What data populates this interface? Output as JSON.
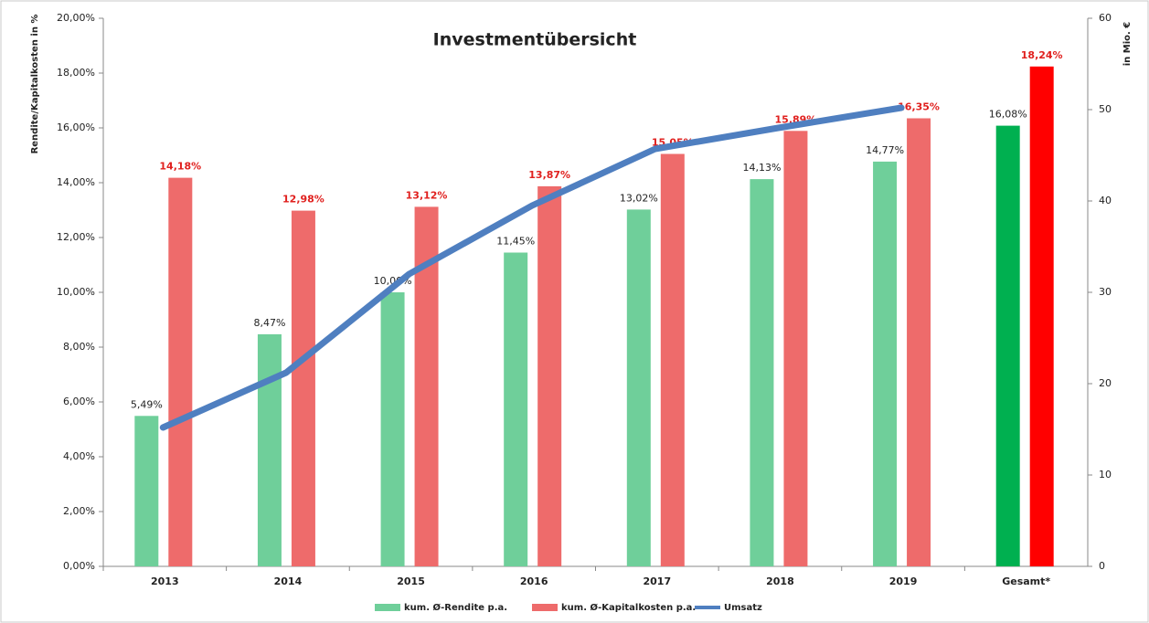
{
  "chart_data": {
    "type": "bar",
    "title": "Investmentübersicht",
    "ylabel": "Rendite/Kapitalkosten in %",
    "y2label": "in Mio. €",
    "categories": [
      "2013",
      "2014",
      "2015",
      "2016",
      "2017",
      "2018",
      "2019",
      "Gesamt*"
    ],
    "series": [
      {
        "name": "kum. Ø-Rendite p.a.",
        "type": "bar",
        "color": "#6fcf9a",
        "colors": [
          "#6fcf9a",
          "#6fcf9a",
          "#6fcf9a",
          "#6fcf9a",
          "#6fcf9a",
          "#6fcf9a",
          "#6fcf9a",
          "#00b050"
        ],
        "label_color": "#222222",
        "values": [
          5.49,
          8.47,
          10.0,
          11.45,
          13.02,
          14.13,
          14.77,
          16.08
        ],
        "value_labels": [
          "5,49%",
          "8,47%",
          "10,00%",
          "11,45%",
          "13,02%",
          "14,13%",
          "14,77%",
          "16,08%"
        ]
      },
      {
        "name": "kum. Ø-Kapitalkosten p.a.",
        "type": "bar",
        "color": "#ee6b6b",
        "colors": [
          "#ee6b6b",
          "#ee6b6b",
          "#ee6b6b",
          "#ee6b6b",
          "#ee6b6b",
          "#ee6b6b",
          "#ee6b6b",
          "#ff0000"
        ],
        "label_color": "#e0201e",
        "values": [
          14.18,
          12.98,
          13.12,
          13.87,
          15.05,
          15.89,
          16.35,
          18.24
        ],
        "value_labels": [
          "14,18%",
          "12,98%",
          "13,12%",
          "13,87%",
          "15,05%",
          "15,89%",
          "16,35%",
          "18,24%"
        ]
      },
      {
        "name": "Umsatz",
        "type": "line",
        "axis": "y2",
        "color": "#4f7fc0",
        "values": [
          15.2,
          21.2,
          32,
          39.5,
          45.7,
          48,
          50.2,
          null
        ]
      }
    ],
    "ylim": [
      0,
      20
    ],
    "yticks": [
      {
        "value": 0,
        "label": "0,00%"
      },
      {
        "value": 2,
        "label": "2,00%"
      },
      {
        "value": 4,
        "label": "4,00%"
      },
      {
        "value": 6,
        "label": "6,00%"
      },
      {
        "value": 8,
        "label": "8,00%"
      },
      {
        "value": 10,
        "label": "10,00%"
      },
      {
        "value": 12,
        "label": "12,00%"
      },
      {
        "value": 14,
        "label": "14,00%"
      },
      {
        "value": 16,
        "label": "16,00%"
      },
      {
        "value": 18,
        "label": "18,00%"
      },
      {
        "value": 20,
        "label": "20,00%"
      }
    ],
    "y2lim": [
      0,
      60
    ],
    "y2ticks": [
      0,
      10,
      20,
      30,
      40,
      50,
      60
    ],
    "legend": "bottom"
  }
}
